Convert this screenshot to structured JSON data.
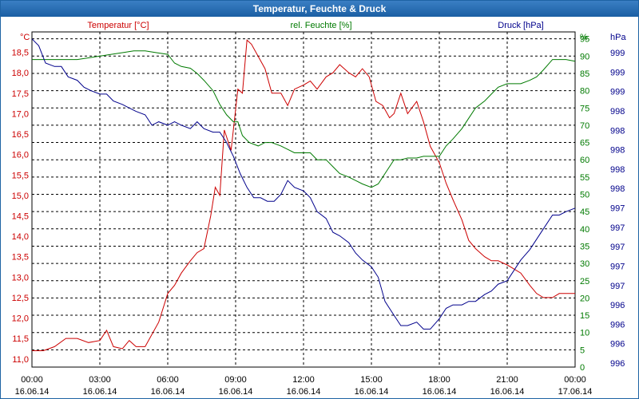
{
  "window": {
    "title": "Temperatur, Feuchte & Druck"
  },
  "colors": {
    "temperature": "#cc0000",
    "humidity": "#007a00",
    "pressure": "#00008b",
    "titlebar": "#1e63a4"
  },
  "chart_data": {
    "type": "line",
    "grid": true,
    "x_ticks": [
      {
        "time": "00:00",
        "date": "16.06.14"
      },
      {
        "time": "03:00",
        "date": "16.06.14"
      },
      {
        "time": "06:00",
        "date": "16.06.14"
      },
      {
        "time": "09:00",
        "date": "16.06.14"
      },
      {
        "time": "12:00",
        "date": "16.06.14"
      },
      {
        "time": "15:00",
        "date": "16.06.14"
      },
      {
        "time": "18:00",
        "date": "16.06.14"
      },
      {
        "time": "21:00",
        "date": "16.06.14"
      },
      {
        "time": "00:00",
        "date": "17.06.14"
      }
    ],
    "xlim": [
      0,
      24
    ],
    "axes": {
      "temperature": {
        "unit": "°C",
        "label": "Temperatur [°C]",
        "ylim": [
          10.8,
          19.0
        ],
        "ticks": [
          "11,0",
          "11,5",
          "12,0",
          "12,5",
          "13,0",
          "13,5",
          "14,0",
          "14,5",
          "15,0",
          "15,5",
          "16,0",
          "16,5",
          "17,0",
          "17,5",
          "18,0",
          "18,5"
        ]
      },
      "humidity": {
        "unit": "%",
        "label": "rel. Feuchte [%]",
        "ylim": [
          0,
          97
        ],
        "ticks": [
          "0",
          "5",
          "10",
          "15",
          "20",
          "25",
          "30",
          "35",
          "40",
          "45",
          "50",
          "55",
          "60",
          "65",
          "70",
          "75",
          "80",
          "85",
          "90",
          "95"
        ]
      },
      "pressure": {
        "unit": "hPa",
        "label": "Druck [hPa]",
        "ticks": [
          "999",
          "999",
          "999",
          "998",
          "998",
          "998",
          "998",
          "998",
          "997",
          "997",
          "997",
          "997",
          "997",
          "996",
          "996",
          "996",
          "996"
        ]
      }
    },
    "series": [
      {
        "name": "Temperatur [°C]",
        "axis": "temperature",
        "x": [
          0,
          0.5,
          1,
          1.5,
          2,
          2.5,
          3,
          3.3,
          3.6,
          4,
          4.3,
          4.6,
          5,
          5.3,
          5.6,
          6,
          6.3,
          6.6,
          7,
          7.3,
          7.6,
          7.9,
          8.1,
          8.3,
          8.5,
          8.8,
          9.1,
          9.3,
          9.5,
          9.7,
          10,
          10.3,
          10.6,
          11,
          11.3,
          11.6,
          12,
          12.3,
          12.6,
          13,
          13.3,
          13.6,
          14,
          14.3,
          14.6,
          14.9,
          15.2,
          15.5,
          15.8,
          16,
          16.3,
          16.6,
          17,
          17.3,
          17.6,
          18,
          18.3,
          18.6,
          19,
          19.3,
          19.6,
          20,
          20.3,
          20.6,
          21,
          21.3,
          21.6,
          22,
          22.3,
          22.6,
          23,
          23.3,
          23.6,
          24
        ],
        "values": [
          11.2,
          11.2,
          11.3,
          11.5,
          11.5,
          11.4,
          11.45,
          11.7,
          11.3,
          11.25,
          11.45,
          11.3,
          11.3,
          11.6,
          11.9,
          12.6,
          12.8,
          13.1,
          13.4,
          13.6,
          13.7,
          14.5,
          15.2,
          15.0,
          16.6,
          16.1,
          17.6,
          17.5,
          18.8,
          18.7,
          18.4,
          18.1,
          17.5,
          17.5,
          17.2,
          17.6,
          17.7,
          17.8,
          17.6,
          17.9,
          18.0,
          18.2,
          18.0,
          17.9,
          18.1,
          17.9,
          17.3,
          17.2,
          16.9,
          17.0,
          17.5,
          17.0,
          17.3,
          16.8,
          16.2,
          15.8,
          15.3,
          14.9,
          14.4,
          13.9,
          13.7,
          13.5,
          13.4,
          13.4,
          13.3,
          13.2,
          13.1,
          12.8,
          12.6,
          12.5,
          12.5,
          12.6,
          12.6,
          12.6
        ]
      },
      {
        "name": "rel. Feuchte [%]",
        "axis": "humidity",
        "x": [
          0,
          0.5,
          1,
          1.5,
          2,
          2.5,
          3,
          3.5,
          4,
          4.5,
          5,
          5.5,
          6,
          6.3,
          6.6,
          7,
          7.3,
          7.6,
          8,
          8.3,
          8.6,
          8.9,
          9.1,
          9.3,
          9.6,
          10,
          10.3,
          10.6,
          11,
          11.3,
          11.6,
          12,
          12.3,
          12.6,
          13,
          13.3,
          13.6,
          14,
          14.3,
          14.6,
          15,
          15.3,
          15.6,
          16,
          16.3,
          16.6,
          17,
          17.3,
          17.6,
          18,
          18.3,
          18.6,
          19,
          19.3,
          19.6,
          20,
          20.3,
          20.6,
          21,
          21.3,
          21.6,
          22,
          22.3,
          22.6,
          23,
          23.3,
          23.6,
          24
        ],
        "values": [
          89,
          89,
          89,
          89,
          89,
          89.5,
          90,
          90.5,
          91,
          91.5,
          91.5,
          91,
          90.5,
          88,
          87,
          86.5,
          85,
          83,
          80,
          76,
          73,
          71,
          71,
          67,
          65,
          64,
          65,
          65,
          64,
          63,
          62,
          62,
          62,
          60,
          60,
          58,
          56,
          55,
          54,
          53,
          52,
          53,
          56,
          60,
          60,
          60.5,
          60.5,
          61,
          61,
          61,
          64,
          66,
          69,
          72,
          75,
          77,
          79,
          81,
          82,
          82,
          82,
          83,
          84,
          86,
          89,
          89,
          89,
          88.5
        ]
      },
      {
        "name": "Druck [hPa]",
        "axis": "pressure",
        "x": [
          0,
          0.3,
          0.6,
          1,
          1.3,
          1.6,
          2,
          2.3,
          2.6,
          3,
          3.3,
          3.6,
          4,
          4.3,
          4.6,
          5,
          5.3,
          5.6,
          6,
          6.3,
          6.6,
          7,
          7.3,
          7.6,
          8,
          8.3,
          8.6,
          8.9,
          9.2,
          9.5,
          9.8,
          10.1,
          10.4,
          10.7,
          11,
          11.3,
          11.6,
          12,
          12.3,
          12.6,
          13,
          13.3,
          13.6,
          14,
          14.3,
          14.6,
          15,
          15.3,
          15.6,
          16,
          16.3,
          16.6,
          17,
          17.3,
          17.6,
          18,
          18.3,
          18.6,
          19,
          19.3,
          19.6,
          20,
          20.3,
          20.6,
          21,
          21.3,
          21.6,
          22,
          22.3,
          22.6,
          23,
          23.3,
          23.6,
          24
        ],
        "values": [
          95,
          93,
          88,
          87,
          87,
          84,
          83,
          81,
          80,
          79,
          79,
          77,
          76,
          75,
          74,
          73,
          70,
          71,
          70,
          71,
          70,
          69,
          71,
          69,
          68,
          68,
          65,
          61,
          56,
          52,
          49,
          49,
          48,
          48,
          50,
          54,
          52,
          51,
          49,
          45,
          43,
          39,
          38,
          36,
          33,
          31,
          29,
          26,
          19,
          15,
          12,
          12,
          13,
          11,
          11,
          14,
          17,
          18,
          18,
          19,
          19,
          21,
          22,
          24,
          25,
          28,
          31,
          34,
          37,
          40,
          44,
          44,
          45,
          46
        ]
      }
    ]
  }
}
